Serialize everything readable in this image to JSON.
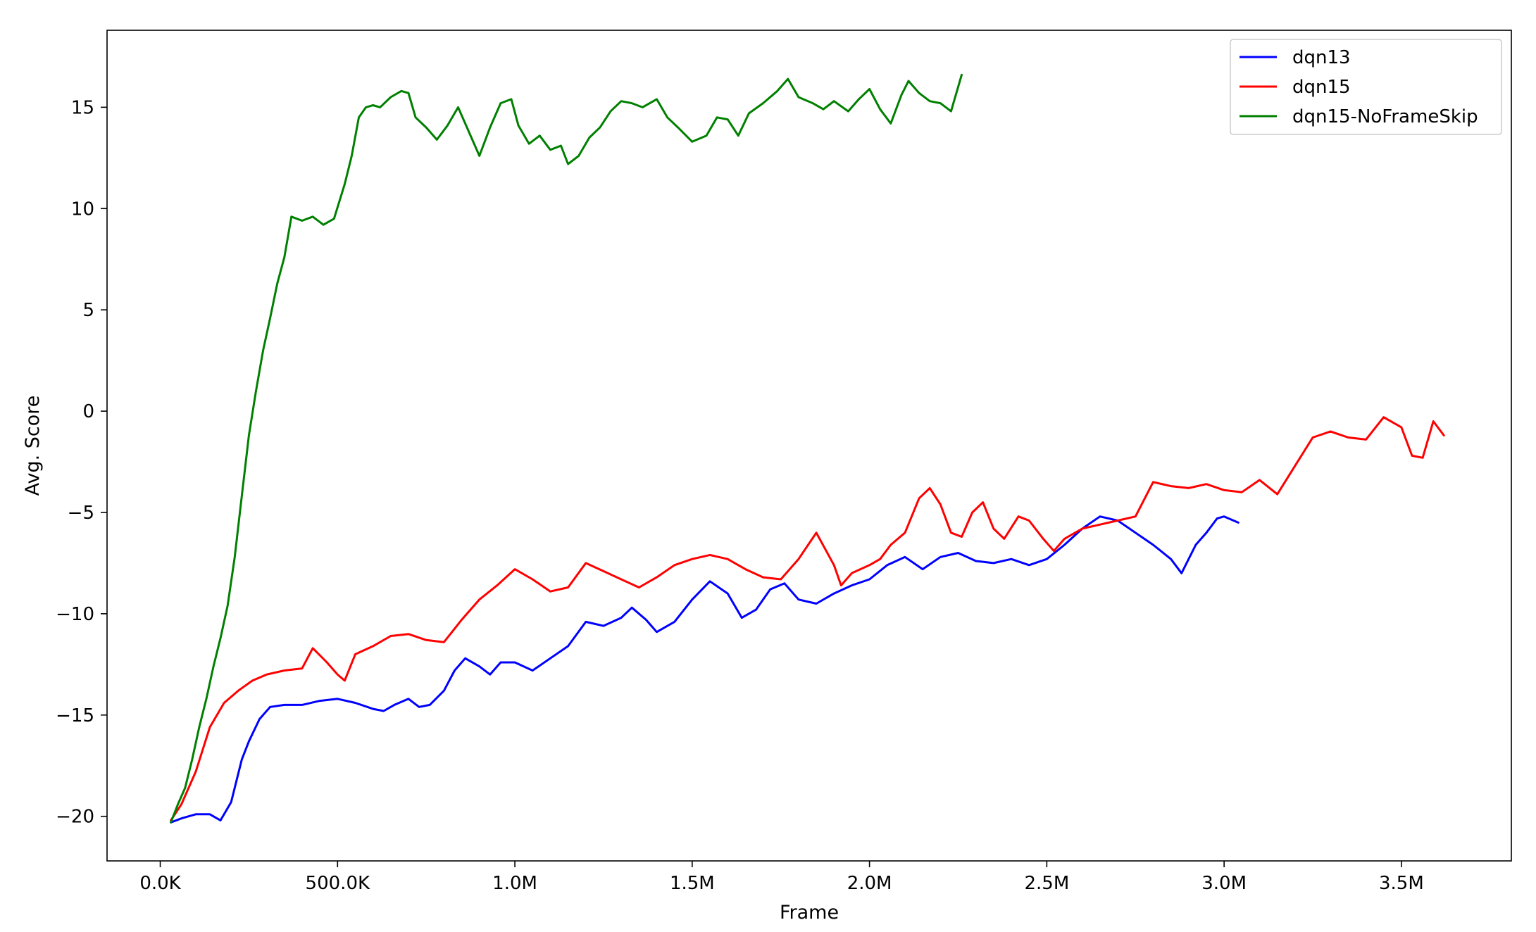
{
  "chart_data": {
    "type": "line",
    "title": "",
    "xlabel": "Frame",
    "ylabel": "Avg. Score",
    "xlim": [
      -150000,
      3810000
    ],
    "ylim": [
      -22.2,
      18.8
    ],
    "xticks": [
      {
        "value": 0,
        "label": "0.0K"
      },
      {
        "value": 500000,
        "label": "500.0K"
      },
      {
        "value": 1000000,
        "label": "1.0M"
      },
      {
        "value": 1500000,
        "label": "1.5M"
      },
      {
        "value": 2000000,
        "label": "2.0M"
      },
      {
        "value": 2500000,
        "label": "2.5M"
      },
      {
        "value": 3000000,
        "label": "3.0M"
      },
      {
        "value": 3500000,
        "label": "3.5M"
      }
    ],
    "yticks": [
      {
        "value": -20,
        "label": "−20"
      },
      {
        "value": -15,
        "label": "−15"
      },
      {
        "value": -10,
        "label": "−10"
      },
      {
        "value": -5,
        "label": "−5"
      },
      {
        "value": 0,
        "label": "0"
      },
      {
        "value": 5,
        "label": "5"
      },
      {
        "value": 10,
        "label": "10"
      },
      {
        "value": 15,
        "label": "15"
      }
    ],
    "grid": false,
    "legend_position": "top-right",
    "series": [
      {
        "name": "dqn13",
        "color": "#0000ff",
        "x": [
          30000,
          60000,
          100000,
          140000,
          170000,
          200000,
          230000,
          250000,
          280000,
          310000,
          350000,
          400000,
          450000,
          500000,
          550000,
          600000,
          630000,
          660000,
          700000,
          730000,
          760000,
          800000,
          830000,
          860000,
          900000,
          930000,
          960000,
          1000000,
          1050000,
          1100000,
          1150000,
          1200000,
          1250000,
          1300000,
          1330000,
          1370000,
          1400000,
          1450000,
          1500000,
          1550000,
          1600000,
          1640000,
          1680000,
          1720000,
          1760000,
          1800000,
          1850000,
          1900000,
          1950000,
          2000000,
          2050000,
          2100000,
          2150000,
          2200000,
          2250000,
          2300000,
          2350000,
          2400000,
          2450000,
          2500000,
          2550000,
          2600000,
          2650000,
          2700000,
          2750000,
          2800000,
          2850000,
          2880000,
          2920000,
          2950000,
          2980000,
          3000000,
          3040000
        ],
        "values": [
          -20.3,
          -20.1,
          -19.9,
          -19.9,
          -20.2,
          -19.3,
          -17.2,
          -16.3,
          -15.2,
          -14.6,
          -14.5,
          -14.5,
          -14.3,
          -14.2,
          -14.4,
          -14.7,
          -14.8,
          -14.5,
          -14.2,
          -14.6,
          -14.5,
          -13.8,
          -12.8,
          -12.2,
          -12.6,
          -13.0,
          -12.4,
          -12.4,
          -12.8,
          -12.2,
          -11.6,
          -10.4,
          -10.6,
          -10.2,
          -9.7,
          -10.3,
          -10.9,
          -10.4,
          -9.3,
          -8.4,
          -9.0,
          -10.2,
          -9.8,
          -8.8,
          -8.5,
          -9.3,
          -9.5,
          -9.0,
          -8.6,
          -8.3,
          -7.6,
          -7.2,
          -7.8,
          -7.2,
          -7.0,
          -7.4,
          -7.5,
          -7.3,
          -7.6,
          -7.3,
          -6.6,
          -5.8,
          -5.2,
          -5.4,
          -6.0,
          -6.6,
          -7.3,
          -8.0,
          -6.6,
          -6.0,
          -5.3,
          -5.2,
          -5.5
        ]
      },
      {
        "name": "dqn15",
        "color": "#ff0000",
        "x": [
          30000,
          60000,
          100000,
          140000,
          180000,
          220000,
          260000,
          300000,
          350000,
          400000,
          430000,
          470000,
          500000,
          520000,
          550000,
          600000,
          650000,
          700000,
          750000,
          800000,
          850000,
          900000,
          950000,
          1000000,
          1050000,
          1100000,
          1150000,
          1200000,
          1250000,
          1300000,
          1350000,
          1400000,
          1450000,
          1500000,
          1550000,
          1600000,
          1650000,
          1700000,
          1750000,
          1800000,
          1850000,
          1900000,
          1920000,
          1950000,
          2000000,
          2030000,
          2060000,
          2100000,
          2140000,
          2170000,
          2200000,
          2230000,
          2260000,
          2290000,
          2320000,
          2350000,
          2380000,
          2420000,
          2450000,
          2490000,
          2520000,
          2550000,
          2600000,
          2650000,
          2700000,
          2750000,
          2800000,
          2850000,
          2900000,
          2950000,
          3000000,
          3050000,
          3100000,
          3150000,
          3200000,
          3250000,
          3300000,
          3350000,
          3400000,
          3450000,
          3500000,
          3530000,
          3560000,
          3590000,
          3620000
        ],
        "values": [
          -20.2,
          -19.4,
          -17.8,
          -15.6,
          -14.4,
          -13.8,
          -13.3,
          -13.0,
          -12.8,
          -12.7,
          -11.7,
          -12.4,
          -13.0,
          -13.3,
          -12.0,
          -11.6,
          -11.1,
          -11.0,
          -11.3,
          -11.4,
          -10.3,
          -9.3,
          -8.6,
          -7.8,
          -8.3,
          -8.9,
          -8.7,
          -7.5,
          -7.9,
          -8.3,
          -8.7,
          -8.2,
          -7.6,
          -7.3,
          -7.1,
          -7.3,
          -7.8,
          -8.2,
          -8.3,
          -7.3,
          -6.0,
          -7.6,
          -8.6,
          -8.0,
          -7.6,
          -7.3,
          -6.6,
          -6.0,
          -4.3,
          -3.8,
          -4.6,
          -6.0,
          -6.2,
          -5.0,
          -4.5,
          -5.8,
          -6.3,
          -5.2,
          -5.4,
          -6.3,
          -6.9,
          -6.3,
          -5.8,
          -5.6,
          -5.4,
          -5.2,
          -3.5,
          -3.7,
          -3.8,
          -3.6,
          -3.9,
          -4.0,
          -3.4,
          -4.1,
          -2.7,
          -1.3,
          -1.0,
          -1.3,
          -1.4,
          -0.3,
          -0.8,
          -2.2,
          -2.3,
          -0.5,
          -1.2
        ]
      },
      {
        "name": "dqn15-NoFrameSkip",
        "color": "#008000",
        "x": [
          30000,
          50000,
          70000,
          90000,
          110000,
          130000,
          150000,
          170000,
          190000,
          210000,
          230000,
          250000,
          270000,
          290000,
          310000,
          330000,
          350000,
          370000,
          400000,
          430000,
          460000,
          490000,
          520000,
          540000,
          560000,
          580000,
          600000,
          620000,
          650000,
          680000,
          700000,
          720000,
          750000,
          780000,
          810000,
          840000,
          870000,
          900000,
          930000,
          960000,
          990000,
          1010000,
          1040000,
          1070000,
          1100000,
          1130000,
          1150000,
          1180000,
          1210000,
          1240000,
          1270000,
          1300000,
          1330000,
          1360000,
          1400000,
          1430000,
          1460000,
          1500000,
          1540000,
          1570000,
          1600000,
          1630000,
          1660000,
          1700000,
          1740000,
          1770000,
          1800000,
          1840000,
          1870000,
          1900000,
          1940000,
          1970000,
          2000000,
          2030000,
          2060000,
          2090000,
          2110000,
          2140000,
          2170000,
          2200000,
          2230000,
          2260000
        ],
        "values": [
          -20.3,
          -19.4,
          -18.6,
          -17.2,
          -15.6,
          -14.2,
          -12.6,
          -11.2,
          -9.6,
          -7.2,
          -4.2,
          -1.2,
          1.0,
          3.0,
          4.6,
          6.3,
          7.6,
          9.6,
          9.4,
          9.6,
          9.2,
          9.5,
          11.2,
          12.6,
          14.5,
          15.0,
          15.1,
          15.0,
          15.5,
          15.8,
          15.7,
          14.5,
          14.0,
          13.4,
          14.1,
          15.0,
          13.8,
          12.6,
          14.0,
          15.2,
          15.4,
          14.1,
          13.2,
          13.6,
          12.9,
          13.1,
          12.2,
          12.6,
          13.5,
          14.0,
          14.8,
          15.3,
          15.2,
          15.0,
          15.4,
          14.5,
          14.0,
          13.3,
          13.6,
          14.5,
          14.4,
          13.6,
          14.7,
          15.2,
          15.8,
          16.4,
          15.5,
          15.2,
          14.9,
          15.3,
          14.8,
          15.4,
          15.9,
          14.9,
          14.2,
          15.6,
          16.3,
          15.7,
          15.3,
          15.2,
          14.8,
          16.6
        ]
      }
    ]
  }
}
